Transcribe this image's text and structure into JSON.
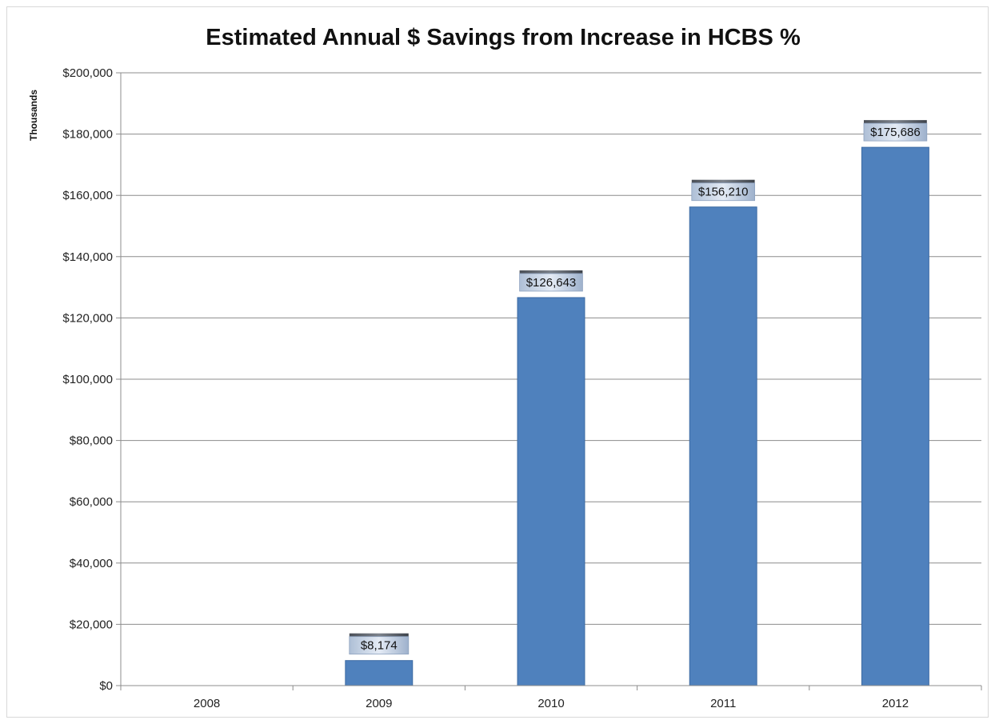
{
  "chart_data": {
    "type": "bar",
    "title": "Estimated Annual $ Savings from Increase in HCBS %",
    "ylabel": "Thousands",
    "xlabel": "",
    "categories": [
      "2008",
      "2009",
      "2010",
      "2011",
      "2012"
    ],
    "values": [
      0,
      8174,
      126643,
      156210,
      175686
    ],
    "data_labels": [
      "",
      "$8,174",
      "$126,643",
      "$156,210",
      "$175,686"
    ],
    "ylim": [
      0,
      200000
    ],
    "y_ticks": [
      0,
      20000,
      40000,
      60000,
      80000,
      100000,
      120000,
      140000,
      160000,
      180000,
      200000
    ],
    "y_tick_labels": [
      "$0",
      "$20,000",
      "$40,000",
      "$60,000",
      "$80,000",
      "$100,000",
      "$120,000",
      "$140,000",
      "$160,000",
      "$180,000",
      "$200,000"
    ],
    "grid": true,
    "legend": "none",
    "colors": {
      "bar": "#4f81bd",
      "bar_edge": "#3c6aa3",
      "gridline": "#8c8c8c",
      "label_box": "#d6e0ee"
    }
  }
}
